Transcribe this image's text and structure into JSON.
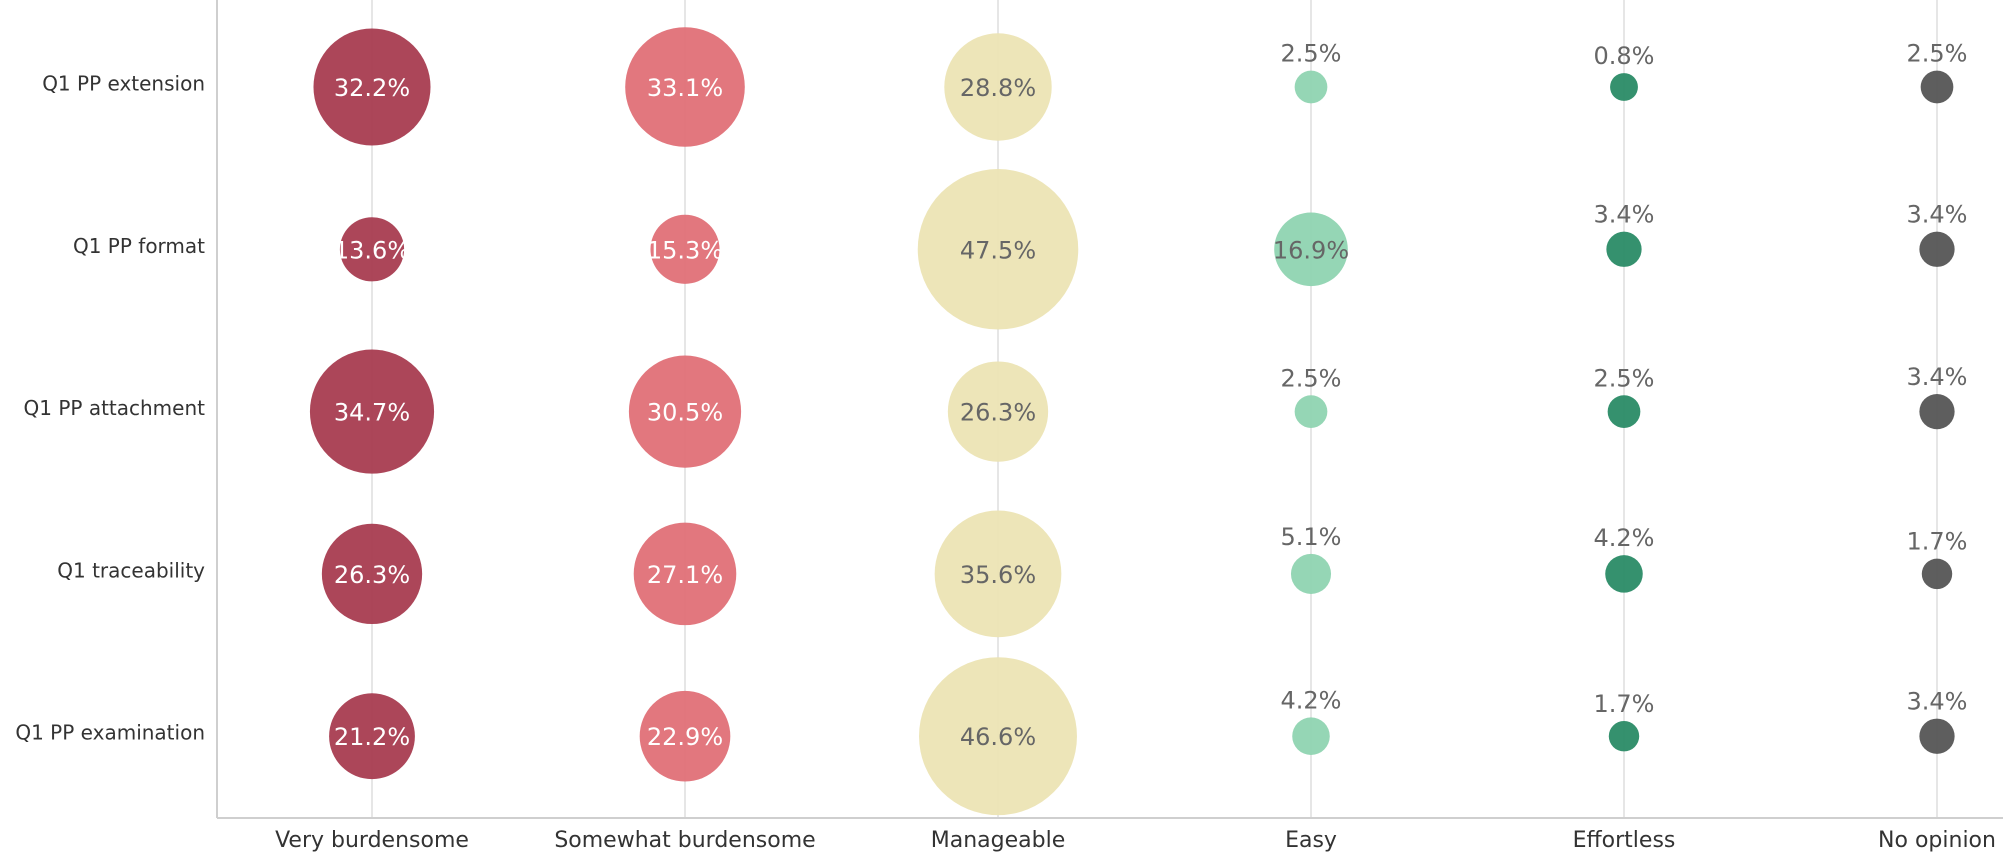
{
  "chart_data": {
    "type": "bubble",
    "categories": [
      "Q1 PP extension",
      "Q1 PP format",
      "Q1 PP attachment",
      "Q1 traceability",
      "Q1 PP examination"
    ],
    "series": [
      {
        "name": "Very burdensome",
        "color": "#a83c50",
        "values": [
          32.2,
          13.6,
          34.7,
          26.3,
          21.2
        ],
        "value_labels": [
          "32.2%",
          "13.6%",
          "34.7%",
          "26.3%",
          "21.2%"
        ]
      },
      {
        "name": "Somewhat burdensome",
        "color": "#e07077",
        "values": [
          33.1,
          15.3,
          30.5,
          27.1,
          22.9
        ],
        "value_labels": [
          "33.1%",
          "15.3%",
          "30.5%",
          "27.1%",
          "22.9%"
        ]
      },
      {
        "name": "Manageable",
        "color": "#ece4b4",
        "values": [
          28.8,
          47.5,
          26.3,
          35.6,
          46.6
        ],
        "value_labels": [
          "28.8%",
          "47.5%",
          "26.3%",
          "35.6%",
          "46.6%"
        ]
      },
      {
        "name": "Easy",
        "color": "#8fd4b1",
        "values": [
          2.5,
          16.9,
          2.5,
          5.1,
          4.2
        ],
        "value_labels": [
          "2.5%",
          "16.9%",
          "2.5%",
          "5.1%",
          "4.2%"
        ]
      },
      {
        "name": "Effortless",
        "color": "#2a8b66",
        "values": [
          0.8,
          3.4,
          2.5,
          4.2,
          1.7
        ],
        "value_labels": [
          "0.8%",
          "3.4%",
          "2.5%",
          "4.2%",
          "1.7%"
        ]
      },
      {
        "name": "No opinion",
        "color": "#555555",
        "values": [
          2.5,
          3.4,
          3.4,
          1.7,
          3.4
        ],
        "value_labels": [
          "2.5%",
          "3.4%",
          "3.4%",
          "1.7%",
          "3.4%"
        ]
      }
    ],
    "grid": true
  }
}
